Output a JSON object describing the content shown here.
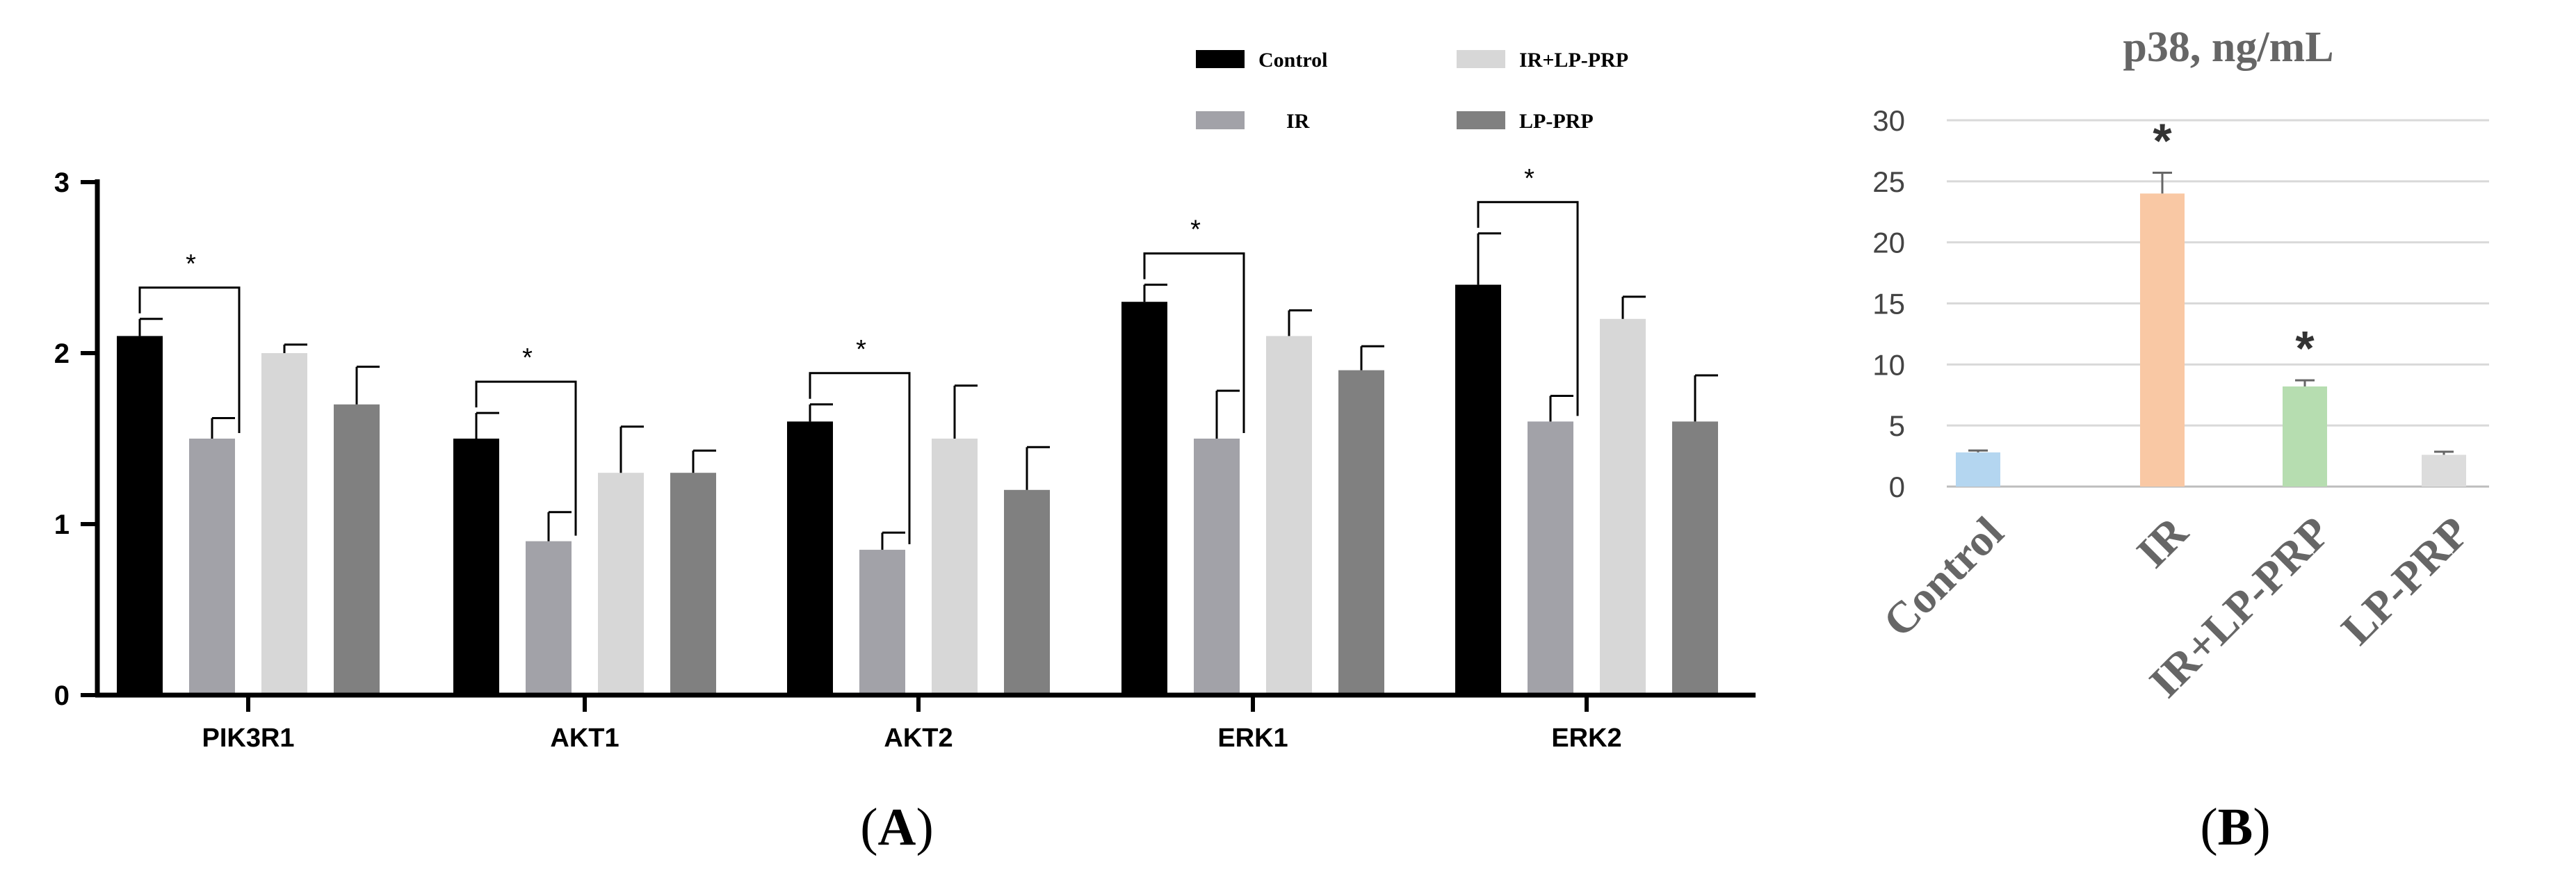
{
  "panel_a_label_parts": [
    "(",
    "A",
    ")"
  ],
  "panel_b_label_parts": [
    "(",
    "B",
    ")"
  ],
  "chart_data": [
    {
      "type": "bar",
      "panel": "A",
      "title": "",
      "xlabel": "",
      "ylabel": "",
      "ylim": [
        0,
        3
      ],
      "yticks": [
        "0",
        "1",
        "2",
        "3"
      ],
      "grid": false,
      "legend_position": "top-center",
      "categories": [
        "PIK3R1",
        "AKT1",
        "AKT2",
        "ERK1",
        "ERK2"
      ],
      "series": [
        {
          "name": "Control",
          "color": "#000000",
          "values": [
            2.1,
            1.5,
            1.6,
            2.3,
            2.4
          ],
          "errors": [
            0.1,
            0.15,
            0.1,
            0.1,
            0.3
          ]
        },
        {
          "name": "IR",
          "color": "#a2a2a8",
          "values": [
            1.5,
            0.9,
            0.85,
            1.5,
            1.6
          ],
          "errors": [
            0.12,
            0.17,
            0.1,
            0.28,
            0.15
          ]
        },
        {
          "name": "IR+LP-PRP",
          "color": "#d7d7d7",
          "values": [
            2.0,
            1.3,
            1.5,
            2.1,
            2.2
          ],
          "errors": [
            0.05,
            0.27,
            0.31,
            0.15,
            0.13
          ]
        },
        {
          "name": "LP-PRP",
          "color": "#808080",
          "values": [
            1.7,
            1.3,
            1.2,
            1.9,
            1.6
          ],
          "errors": [
            0.22,
            0.13,
            0.25,
            0.14,
            0.27
          ]
        }
      ],
      "significance": [
        {
          "category": "PIK3R1",
          "between": [
            "Control",
            "IR"
          ],
          "label": "*"
        },
        {
          "category": "AKT1",
          "between": [
            "Control",
            "IR"
          ],
          "label": "*"
        },
        {
          "category": "AKT2",
          "between": [
            "Control",
            "IR"
          ],
          "label": "*"
        },
        {
          "category": "ERK1",
          "between": [
            "Control",
            "IR"
          ],
          "label": "*"
        },
        {
          "category": "ERK2",
          "between": [
            "Control",
            "IR"
          ],
          "label": "*"
        }
      ]
    },
    {
      "type": "bar",
      "panel": "B",
      "title": "p38, ng/mL",
      "xlabel": "",
      "ylabel": "",
      "ylim": [
        0,
        30
      ],
      "yticks": [
        "0",
        "5",
        "10",
        "15",
        "20",
        "25",
        "30"
      ],
      "grid": true,
      "categories": [
        "Control",
        "IR",
        "IR+LP-PRP",
        "LP-PRP"
      ],
      "values": [
        2.8,
        24.0,
        8.2,
        2.6
      ],
      "errors": [
        0.15,
        1.7,
        0.5,
        0.25
      ],
      "colors": [
        "#b4d6f0",
        "#f9c8a4",
        "#b6ddb0",
        "#dcdcdc"
      ],
      "significance_labels": [
        "",
        "*",
        "*",
        ""
      ]
    }
  ]
}
